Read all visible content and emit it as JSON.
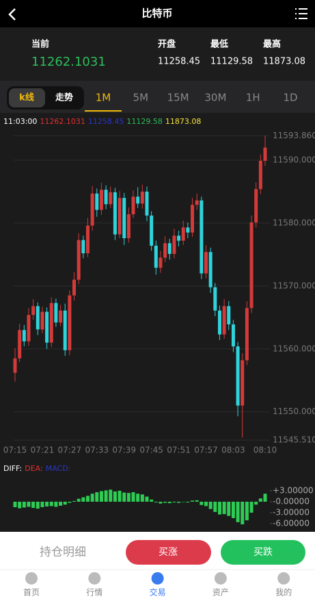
{
  "header": {
    "title": "比特币"
  },
  "ticker": {
    "current_label": "当前",
    "current": "11262.1031",
    "open_label": "开盘",
    "open": "11258.45",
    "low_label": "最低",
    "low": "11129.58",
    "high_label": "最高",
    "high": "11873.08"
  },
  "tabs": {
    "chart_modes": [
      "k线",
      "走势"
    ],
    "intervals": [
      "1M",
      "5M",
      "15M",
      "30M",
      "1H",
      "1D"
    ]
  },
  "chart_data": [
    {
      "type": "candlestick",
      "readout": {
        "time": "11:03:00",
        "values": [
          "11262.1031",
          "11258.45",
          "11129.58",
          "11873.08"
        ]
      },
      "categories": [
        "07:15",
        null,
        null,
        null,
        null,
        null,
        "07:21",
        null,
        null,
        null,
        null,
        null,
        "07:27",
        null,
        null,
        null,
        null,
        null,
        "07:33",
        null,
        null,
        null,
        null,
        null,
        "07:39",
        null,
        null,
        null,
        null,
        null,
        "07:45",
        null,
        null,
        null,
        null,
        null,
        "07:51",
        null,
        null,
        null,
        null,
        null,
        "07:57",
        null,
        null,
        null,
        null,
        null,
        "08:03",
        null,
        null,
        null,
        null,
        null,
        null,
        "08:10"
      ],
      "candles": [
        [
          11556.2,
          11560.1,
          11554.8,
          11558.5
        ],
        [
          11558.5,
          11564.0,
          11557.9,
          11563.0
        ],
        [
          11563.0,
          11563.8,
          11560.4,
          11561.2
        ],
        [
          11561.2,
          11566.5,
          11560.5,
          11565.4
        ],
        [
          11565.4,
          11567.9,
          11564.6,
          11566.8
        ],
        [
          11566.8,
          11567.4,
          11562.2,
          11563.1
        ],
        [
          11563.1,
          11566.7,
          11562.5,
          11565.9
        ],
        [
          11565.9,
          11566.6,
          11560.0,
          11561.0
        ],
        [
          11561.0,
          11568.2,
          11560.3,
          11567.3
        ],
        [
          11567.3,
          11568.0,
          11563.5,
          11564.2
        ],
        [
          11564.2,
          11567.0,
          11563.6,
          11566.1
        ],
        [
          11566.1,
          11567.2,
          11558.9,
          11559.8
        ],
        [
          11559.8,
          11569.3,
          11559.0,
          11568.5
        ],
        [
          11568.5,
          11572.2,
          11567.7,
          11571.0
        ],
        [
          11571.0,
          11578.4,
          11570.3,
          11577.3
        ],
        [
          11577.3,
          11578.0,
          11574.4,
          11575.2
        ],
        [
          11575.2,
          11580.8,
          11574.6,
          11579.6
        ],
        [
          11579.6,
          11585.9,
          11578.8,
          11584.7
        ],
        [
          11584.7,
          11585.5,
          11581.0,
          11582.1
        ],
        [
          11582.1,
          11586.4,
          11581.3,
          11585.3
        ],
        [
          11585.3,
          11586.0,
          11582.2,
          11583.0
        ],
        [
          11583.0,
          11585.8,
          11582.4,
          11584.9
        ],
        [
          11584.9,
          11585.6,
          11577.3,
          11578.2
        ],
        [
          11578.2,
          11585.1,
          11577.6,
          11584.0
        ],
        [
          11584.0,
          11584.8,
          11576.5,
          11577.6
        ],
        [
          11577.6,
          11582.5,
          11576.9,
          11581.4
        ],
        [
          11581.4,
          11585.2,
          11580.8,
          11584.2
        ],
        [
          11584.2,
          11585.7,
          11582.4,
          11583.1
        ],
        [
          11583.1,
          11586.1,
          11582.3,
          11585.0
        ],
        [
          11585.0,
          11585.8,
          11580.3,
          11581.2
        ],
        [
          11581.2,
          11581.9,
          11575.6,
          11576.4
        ],
        [
          11576.4,
          11577.2,
          11571.8,
          11572.9
        ],
        [
          11572.9,
          11575.6,
          11572.1,
          11574.5
        ],
        [
          11574.5,
          11577.9,
          11573.8,
          11576.8
        ],
        [
          11576.8,
          11577.5,
          11574.2,
          11575.1
        ],
        [
          11575.1,
          11579.1,
          11574.4,
          11578.0
        ],
        [
          11578.0,
          11578.8,
          11576.3,
          11577.2
        ],
        [
          11577.2,
          11580.4,
          11576.5,
          11579.3
        ],
        [
          11579.3,
          11580.1,
          11577.6,
          11578.5
        ],
        [
          11578.5,
          11584.0,
          11577.8,
          11582.9
        ],
        [
          11582.9,
          11584.7,
          11582.1,
          11583.6
        ],
        [
          11583.6,
          11584.2,
          11571.1,
          11572.0
        ],
        [
          11572.0,
          11576.5,
          11571.2,
          11575.4
        ],
        [
          11575.4,
          11576.1,
          11568.9,
          11569.8
        ],
        [
          11569.8,
          11570.5,
          11565.2,
          11566.1
        ],
        [
          11566.1,
          11566.9,
          11561.4,
          11562.3
        ],
        [
          11562.3,
          11567.9,
          11561.6,
          11566.8
        ],
        [
          11566.8,
          11567.6,
          11563.0,
          11563.9
        ],
        [
          11563.9,
          11564.6,
          11559.5,
          11560.4
        ],
        [
          11560.4,
          11561.1,
          11549.3,
          11551.0
        ],
        [
          11551.0,
          11559.3,
          11545.9,
          11558.2
        ],
        [
          11558.2,
          11567.6,
          11557.4,
          11566.5
        ],
        [
          11566.5,
          11581.2,
          11565.7,
          11580.1
        ],
        [
          11580.1,
          11586.5,
          11579.3,
          11585.4
        ],
        [
          11585.4,
          11590.9,
          11584.6,
          11589.9
        ],
        [
          11589.9,
          11593.9,
          11589.1,
          11592.0
        ]
      ],
      "up_color": "#d33a3a",
      "down_color": "#2fd3dc",
      "ylim": [
        11545.51,
        11593.86
      ],
      "yticks": [
        {
          "value": 11593.86,
          "label": "11593.8600"
        },
        {
          "value": 11590,
          "label": "11590.0000"
        },
        {
          "value": 11580,
          "label": "11580.0000"
        },
        {
          "value": 11570,
          "label": "11570.0000"
        },
        {
          "value": 11560,
          "label": "11560.0000"
        },
        {
          "value": 11550,
          "label": "11550.0000"
        },
        {
          "value": 11545.51,
          "label": "11545.5100"
        }
      ],
      "grid": true
    },
    {
      "type": "bar",
      "legend": [
        "DIFF:",
        "DEA:",
        "MACD:"
      ],
      "values": [
        -1.5,
        -1.8,
        -1.6,
        -1.4,
        -1.7,
        -1.9,
        -1.5,
        -1.3,
        -1.2,
        -1.4,
        -1.1,
        -0.8,
        -0.3,
        0.2,
        0.8,
        1.2,
        1.6,
        2.2,
        2.6,
        2.9,
        3.1,
        3.3,
        2.8,
        3.0,
        2.5,
        2.4,
        2.6,
        2.2,
        2.0,
        1.4,
        0.6,
        -0.2,
        -0.5,
        -0.3,
        -0.4,
        -0.2,
        -0.3,
        -0.1,
        -0.2,
        0.3,
        0.4,
        -0.9,
        -1.2,
        -2.0,
        -2.8,
        -3.5,
        -3.4,
        -3.9,
        -4.5,
        -5.6,
        -6.2,
        -5.1,
        -3.0,
        -0.8,
        0.9,
        2.2
      ],
      "color": "#2ecc55",
      "ylim": [
        -6,
        3
      ],
      "yticks": [
        {
          "value": 3,
          "label": "+3.00000"
        },
        {
          "value": 0,
          "label": "-0.00000"
        },
        {
          "value": -3,
          "label": "-3.00000"
        },
        {
          "value": -6,
          "label": "-6.00000"
        }
      ]
    }
  ],
  "actions": {
    "positions": "持仓明细",
    "buy_up": "买涨",
    "buy_down": "买跌"
  },
  "nav": [
    "首页",
    "行情",
    "交易",
    "资产",
    "我的"
  ]
}
